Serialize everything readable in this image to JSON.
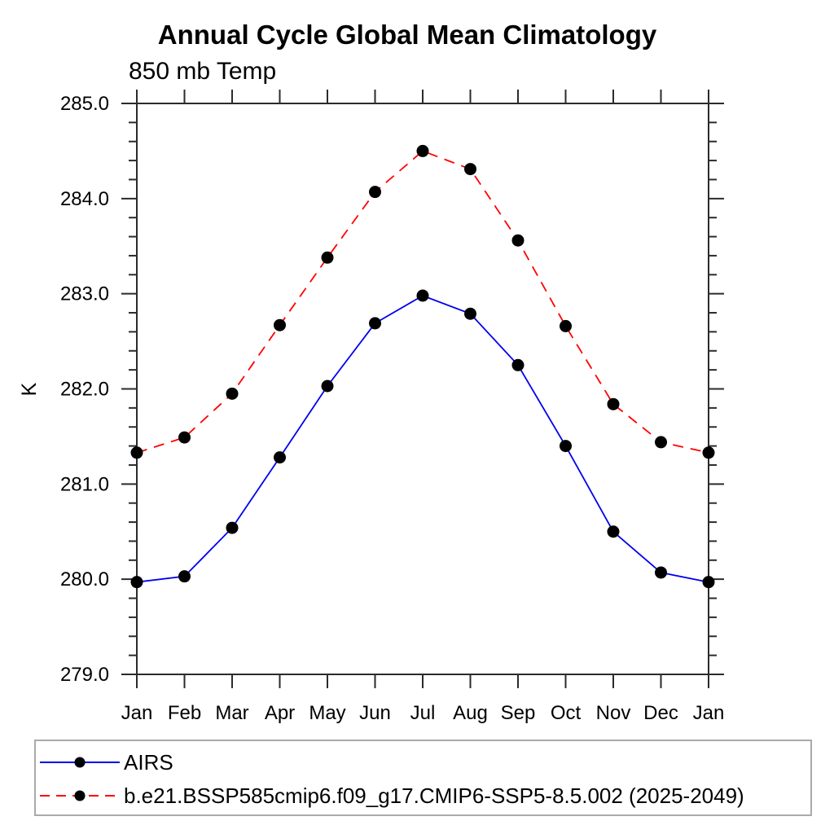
{
  "header": {
    "title": "Annual Cycle Global Mean Climatology",
    "subtitle": "850 mb Temp"
  },
  "chart_data": {
    "type": "line",
    "title": "Annual Cycle Global Mean Climatology",
    "subtitle": "850 mb Temp",
    "xlabel": "",
    "ylabel": "K",
    "categories": [
      "Jan",
      "Feb",
      "Mar",
      "Apr",
      "May",
      "Jun",
      "Jul",
      "Aug",
      "Sep",
      "Oct",
      "Nov",
      "Dec",
      "Jan"
    ],
    "ylim": [
      279.0,
      285.0
    ],
    "ytick_major_step": 1.0,
    "ytick_minor_step": 0.2,
    "ytick_labels": [
      "279.0",
      "280.0",
      "281.0",
      "282.0",
      "283.0",
      "284.0",
      "285.0"
    ],
    "grid": false,
    "legend_position": "bottom-left-box",
    "marker": "filled-circle",
    "marker_color": "#000000",
    "series": [
      {
        "name": "AIRS",
        "color": "#0000ee",
        "line_style": "solid",
        "values": [
          279.97,
          280.03,
          280.54,
          281.28,
          282.03,
          282.69,
          282.98,
          282.79,
          282.25,
          281.4,
          280.5,
          280.07,
          279.97
        ]
      },
      {
        "name": "b.e21.BSSP585cmip6.f09_g17.CMIP6-SSP5-8.5.002 (2025-2049)",
        "color": "#ff0000",
        "line_style": "dashed",
        "values": [
          281.33,
          281.49,
          281.95,
          282.67,
          283.38,
          284.07,
          284.5,
          284.31,
          283.56,
          282.66,
          281.84,
          281.44,
          281.33
        ]
      }
    ]
  },
  "colors": {
    "axis": "#2b2b2b",
    "legend_border": "#aaaaaa",
    "background": "#ffffff"
  }
}
